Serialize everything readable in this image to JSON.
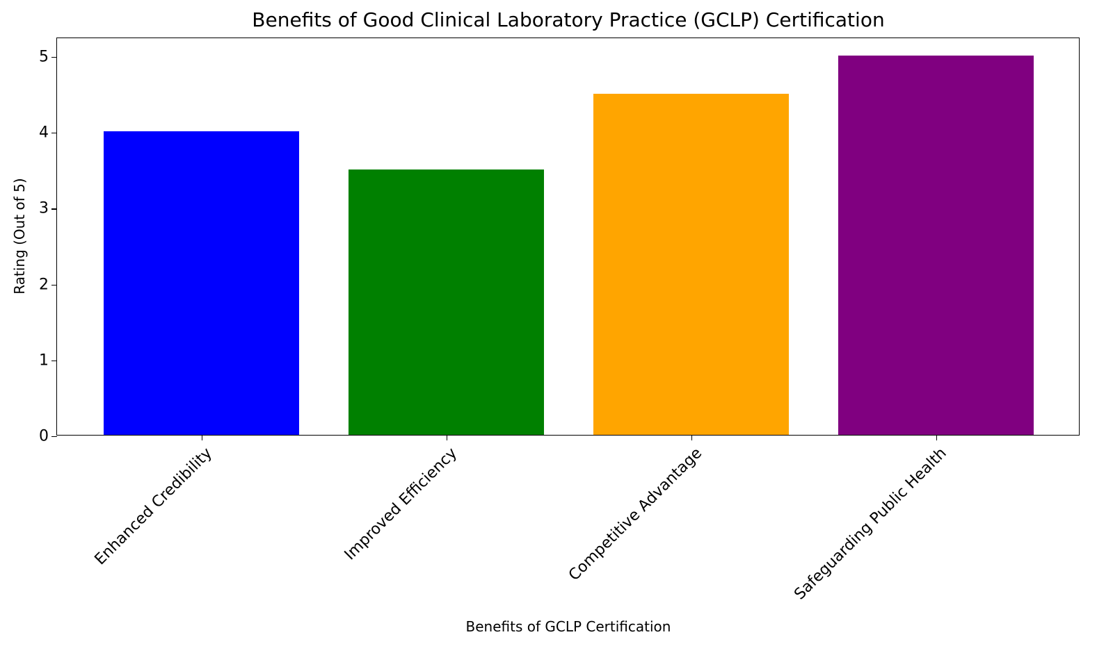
{
  "chart_data": {
    "type": "bar",
    "title": "Benefits of Good Clinical Laboratory Practice (GCLP) Certification",
    "xlabel": "Benefits of GCLP Certification",
    "ylabel": "Rating (Out of 5)",
    "categories": [
      "Enhanced Credibility",
      "Improved Efficiency",
      "Competitive Advantage",
      "Safeguarding Public Health"
    ],
    "values": [
      4,
      3.5,
      4.5,
      5
    ],
    "colors": [
      "#0000ff",
      "#008000",
      "#ffa500",
      "#800080"
    ],
    "ylim": [
      0,
      5.25
    ],
    "yticks": [
      0,
      1,
      2,
      3,
      4,
      5
    ],
    "grid": false,
    "legend": null
  }
}
